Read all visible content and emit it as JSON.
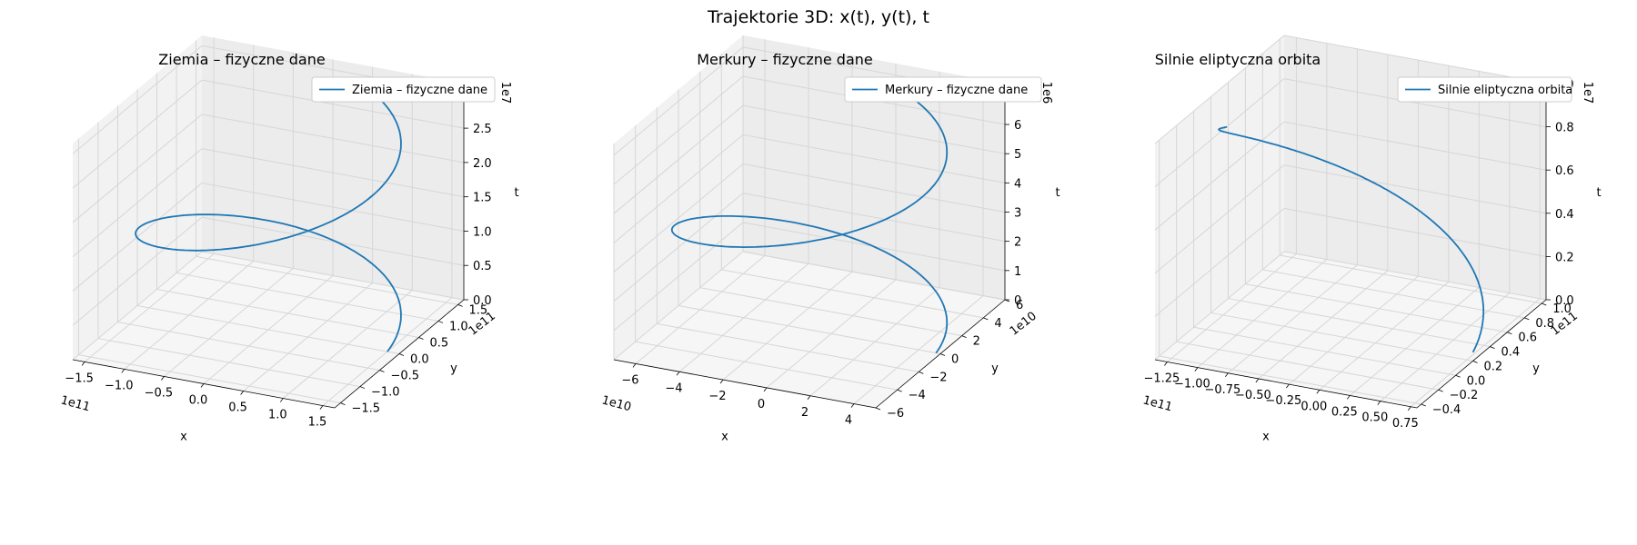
{
  "figure": {
    "suptitle": "Trajektorie 3D: x(t), y(t), t"
  },
  "chart_data": [
    {
      "type": "line3d",
      "title": "Ziemia – fizyczne dane",
      "xlabel": "x",
      "ylabel": "y",
      "zlabel": "t",
      "x_offset": "1e11",
      "y_offset": "1e11",
      "z_offset": "1e7",
      "xlim": [
        -1.65,
        1.65
      ],
      "ylim": [
        -1.65,
        1.65
      ],
      "zlim": [
        0,
        3.15
      ],
      "x_ticks": [
        -1.5,
        -1.0,
        -0.5,
        0.0,
        0.5,
        1.0,
        1.5
      ],
      "x_tick_labels": [
        "−1.5",
        "−1.0",
        "−0.5",
        "0.0",
        "0.5",
        "1.0",
        "1.5"
      ],
      "y_ticks": [
        -1.5,
        -1.0,
        -0.5,
        0.0,
        0.5,
        1.0,
        1.5
      ],
      "y_tick_labels": [
        "−1.5",
        "−1.0",
        "−0.5",
        "0.0",
        "0.5",
        "1.0",
        "1.5"
      ],
      "z_ticks": [
        0,
        0.5,
        1.0,
        1.5,
        2.0,
        2.5,
        3.0
      ],
      "z_tick_labels": [
        "0.0",
        "0.5",
        "1.0",
        "1.5",
        "2.0",
        "2.5",
        "3.0"
      ],
      "legend_location": "top-right",
      "grid": true,
      "series": [
        {
          "name": "Ziemia – fizyczne dane",
          "color": "#1f77b4",
          "x_amp": 1.5,
          "y_amp": 1.5,
          "z_max": 3.0,
          "phase_start": 0.0,
          "phase_span": 1.2
        }
      ]
    },
    {
      "type": "line3d",
      "title": "Merkury – fizyczne dane",
      "xlabel": "x",
      "ylabel": "y",
      "zlabel": "t",
      "x_offset": "1e10",
      "y_offset": "1e10",
      "z_offset": "1e6",
      "xlim": [
        -7.0,
        5.0
      ],
      "ylim": [
        -6.0,
        6.0
      ],
      "zlim": [
        0,
        7.4
      ],
      "x_ticks": [
        -6,
        -4,
        -2,
        0,
        2,
        4
      ],
      "x_tick_labels": [
        "−6",
        "−4",
        "−2",
        "0",
        "2",
        "4"
      ],
      "y_ticks": [
        -6,
        -4,
        -2,
        0,
        2,
        4,
        6
      ],
      "y_tick_labels": [
        "−6",
        "−4",
        "−2",
        "0",
        "2",
        "4",
        "6"
      ],
      "z_ticks": [
        0,
        1,
        2,
        3,
        4,
        5,
        6,
        7
      ],
      "z_tick_labels": [
        "0",
        "1",
        "2",
        "3",
        "4",
        "5",
        "6",
        "7"
      ],
      "legend_location": "top-right",
      "grid": true,
      "series": [
        {
          "name": "Merkury – fizyczne dane",
          "color": "#1f77b4",
          "x_amp": 5.8,
          "y_amp": 5.0,
          "x_center": -1.0,
          "z_max": 7.0,
          "phase_start": 0.0,
          "phase_span": 1.2
        }
      ]
    },
    {
      "type": "line3d",
      "title": "Silnie eliptyczna orbita",
      "xlabel": "x",
      "ylabel": "y",
      "zlabel": "t",
      "x_offset": "1e11",
      "y_offset": "1e11",
      "z_offset": "1e7",
      "xlim": [
        -1.35,
        0.8
      ],
      "ylim": [
        -0.45,
        1.05
      ],
      "zlim": [
        0,
        1.0
      ],
      "x_ticks": [
        -1.25,
        -1.0,
        -0.75,
        -0.5,
        -0.25,
        0.0,
        0.25,
        0.5,
        0.75
      ],
      "x_tick_labels": [
        "−1.25",
        "−1.00",
        "−0.75",
        "−0.50",
        "−0.25",
        "0.00",
        "0.25",
        "0.50",
        "0.75"
      ],
      "y_ticks": [
        -0.4,
        -0.2,
        0.0,
        0.2,
        0.4,
        0.6,
        0.8,
        1.0
      ],
      "y_tick_labels": [
        "−0.4",
        "−0.2",
        "0.0",
        "0.2",
        "0.4",
        "0.6",
        "0.8",
        "1.0"
      ],
      "z_ticks": [
        0,
        0.2,
        0.4,
        0.6,
        0.8,
        1.0
      ],
      "z_tick_labels": [
        "0.0",
        "0.2",
        "0.4",
        "0.6",
        "0.8",
        "1.0"
      ],
      "legend_location": "top-right",
      "grid": true,
      "series": [
        {
          "name": "Silnie eliptyczna orbita",
          "color": "#1f77b4",
          "x_amp": 1.0,
          "y_amp": 0.6,
          "x_center": -0.27,
          "y_center": 0.3,
          "z_max": 1.0,
          "phase_start": 0.0,
          "phase_span": 0.62
        }
      ]
    }
  ]
}
